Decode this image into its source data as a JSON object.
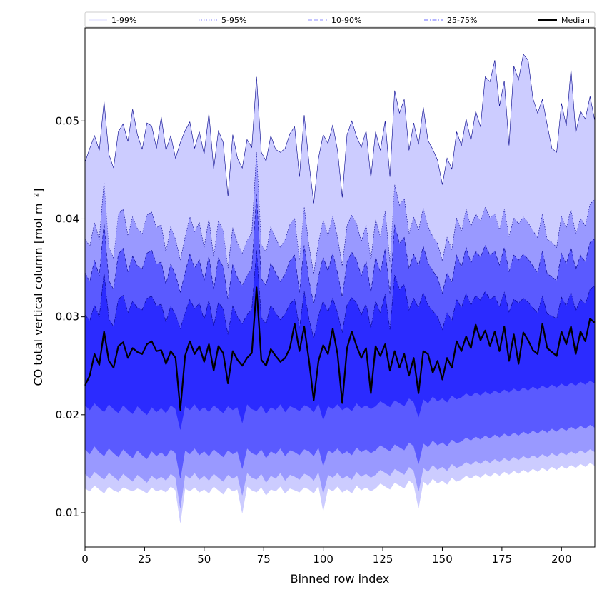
{
  "chart_data": {
    "type": "area",
    "xlabel": "Binned row index",
    "ylabel": "CO total vertical column [mol m⁻²]",
    "xlim": [
      0,
      214
    ],
    "ylim": [
      0.0065,
      0.0595
    ],
    "x_ticks": [
      0,
      25,
      50,
      75,
      100,
      125,
      150,
      175,
      200
    ],
    "y_ticks": [
      0.01,
      0.02,
      0.03,
      0.04,
      0.05
    ],
    "x_tick_labels": [
      "0",
      "25",
      "50",
      "75",
      "100",
      "125",
      "150",
      "175",
      "200"
    ],
    "y_tick_labels": [
      "0.01",
      "0.02",
      "0.03",
      "0.04",
      "0.05"
    ],
    "grid": false,
    "legend_position": "top",
    "x_step": 2,
    "series": [
      {
        "name": "1-99%",
        "color": "#ccccff",
        "line_style": "solid",
        "lower": [
          0.0125,
          0.0122,
          0.0128,
          0.0124,
          0.012,
          0.0127,
          0.0123,
          0.0121,
          0.0126,
          0.0124,
          0.0122,
          0.0125,
          0.0123,
          0.012,
          0.0126,
          0.0122,
          0.0124,
          0.0121,
          0.0127,
          0.0123,
          0.009,
          0.0125,
          0.0122,
          0.0126,
          0.0121,
          0.0124,
          0.012,
          0.0127,
          0.0123,
          0.0119,
          0.0126,
          0.0122,
          0.0124,
          0.01,
          0.0127,
          0.0123,
          0.0121,
          0.0126,
          0.0118,
          0.0124,
          0.0122,
          0.0127,
          0.012,
          0.0125,
          0.0123,
          0.0121,
          0.0126,
          0.0124,
          0.012,
          0.0128,
          0.0102,
          0.0125,
          0.0122,
          0.0127,
          0.0121,
          0.0124,
          0.012,
          0.0128,
          0.0123,
          0.0126,
          0.0122,
          0.0125,
          0.013,
          0.0127,
          0.0124,
          0.0131,
          0.0128,
          0.0125,
          0.0133,
          0.0129,
          0.0105,
          0.0132,
          0.0128,
          0.0135,
          0.013,
          0.0133,
          0.0129,
          0.0136,
          0.0132,
          0.0134,
          0.0138,
          0.0135,
          0.0139,
          0.0136,
          0.014,
          0.0137,
          0.0141,
          0.0138,
          0.0142,
          0.0139,
          0.0143,
          0.014,
          0.0144,
          0.0141,
          0.0145,
          0.0142,
          0.0146,
          0.0143,
          0.0147,
          0.0144,
          0.0148,
          0.0145,
          0.0149,
          0.0146,
          0.015,
          0.0147,
          0.0151,
          0.0148
        ],
        "upper": [
          0.0458,
          0.0472,
          0.0485,
          0.047,
          0.052,
          0.0466,
          0.0452,
          0.0489,
          0.0497,
          0.0479,
          0.0512,
          0.0486,
          0.0471,
          0.0498,
          0.0495,
          0.0472,
          0.0504,
          0.047,
          0.0485,
          0.0462,
          0.0478,
          0.049,
          0.0499,
          0.0472,
          0.0489,
          0.0466,
          0.0508,
          0.0451,
          0.049,
          0.0478,
          0.0423,
          0.0486,
          0.0462,
          0.0452,
          0.0481,
          0.0473,
          0.0545,
          0.0468,
          0.0459,
          0.0485,
          0.0471,
          0.0468,
          0.0472,
          0.0487,
          0.0494,
          0.0443,
          0.0506,
          0.0458,
          0.0416,
          0.0462,
          0.0486,
          0.0477,
          0.0496,
          0.047,
          0.0422,
          0.0486,
          0.05,
          0.0484,
          0.0473,
          0.049,
          0.0442,
          0.0489,
          0.047,
          0.05,
          0.0443,
          0.0531,
          0.0508,
          0.0522,
          0.047,
          0.0498,
          0.0476,
          0.0514,
          0.048,
          0.0471,
          0.046,
          0.0435,
          0.0462,
          0.0451,
          0.0489,
          0.0475,
          0.0502,
          0.048,
          0.051,
          0.0494,
          0.0545,
          0.054,
          0.0562,
          0.0515,
          0.0541,
          0.0475,
          0.0556,
          0.0542,
          0.0568,
          0.0562,
          0.0523,
          0.0508,
          0.0522,
          0.0496,
          0.0472,
          0.0468,
          0.0518,
          0.0495,
          0.0553,
          0.0488,
          0.051,
          0.0502,
          0.0525,
          0.05
        ]
      },
      {
        "name": "5-95%",
        "color": "#9999ff",
        "line_style": "dotted",
        "lower": [
          0.014,
          0.0135,
          0.0142,
          0.0138,
          0.0134,
          0.0141,
          0.0137,
          0.0133,
          0.014,
          0.0136,
          0.0132,
          0.0139,
          0.0135,
          0.0131,
          0.0138,
          0.0134,
          0.0137,
          0.0133,
          0.014,
          0.0136,
          0.0105,
          0.0139,
          0.0135,
          0.0141,
          0.0134,
          0.0138,
          0.0133,
          0.014,
          0.0136,
          0.0132,
          0.0139,
          0.0135,
          0.0138,
          0.0118,
          0.0141,
          0.0136,
          0.0134,
          0.014,
          0.0131,
          0.0138,
          0.0135,
          0.0141,
          0.0133,
          0.0139,
          0.0137,
          0.0134,
          0.014,
          0.0138,
          0.0133,
          0.0142,
          0.012,
          0.0139,
          0.0136,
          0.0141,
          0.0135,
          0.0138,
          0.0134,
          0.0142,
          0.0137,
          0.014,
          0.0136,
          0.0139,
          0.0144,
          0.0141,
          0.0138,
          0.0145,
          0.0142,
          0.0139,
          0.0147,
          0.0143,
          0.0122,
          0.0146,
          0.0142,
          0.0149,
          0.0144,
          0.0147,
          0.0143,
          0.015,
          0.0146,
          0.0148,
          0.0152,
          0.0149,
          0.0153,
          0.015,
          0.0154,
          0.0151,
          0.0155,
          0.0152,
          0.0156,
          0.0153,
          0.0157,
          0.0154,
          0.0158,
          0.0155,
          0.0159,
          0.0156,
          0.016,
          0.0157,
          0.0161,
          0.0158,
          0.0162,
          0.0159,
          0.0163,
          0.016,
          0.0164,
          0.0161,
          0.0165,
          0.0162
        ],
        "upper": [
          0.038,
          0.0372,
          0.0396,
          0.0379,
          0.0438,
          0.0371,
          0.036,
          0.0405,
          0.041,
          0.0383,
          0.0402,
          0.039,
          0.0385,
          0.0404,
          0.0407,
          0.0391,
          0.0394,
          0.0366,
          0.0392,
          0.0379,
          0.0358,
          0.0381,
          0.0402,
          0.0387,
          0.0396,
          0.0371,
          0.04,
          0.0361,
          0.0398,
          0.0388,
          0.035,
          0.0391,
          0.0375,
          0.0365,
          0.0378,
          0.0386,
          0.0468,
          0.0374,
          0.0366,
          0.0392,
          0.038,
          0.0371,
          0.0379,
          0.0394,
          0.0401,
          0.0358,
          0.0412,
          0.0373,
          0.0344,
          0.0376,
          0.0399,
          0.0383,
          0.0403,
          0.0381,
          0.0352,
          0.0393,
          0.0404,
          0.0395,
          0.0377,
          0.0394,
          0.0358,
          0.0399,
          0.0382,
          0.0408,
          0.0356,
          0.0435,
          0.0414,
          0.0421,
          0.0385,
          0.0402,
          0.0388,
          0.0411,
          0.0392,
          0.0382,
          0.0375,
          0.0357,
          0.0381,
          0.0369,
          0.0401,
          0.0387,
          0.041,
          0.0392,
          0.0405,
          0.0398,
          0.0412,
          0.0401,
          0.0405,
          0.0389,
          0.041,
          0.0382,
          0.0401,
          0.0395,
          0.0402,
          0.0396,
          0.0388,
          0.0381,
          0.0405,
          0.0379,
          0.0376,
          0.0371,
          0.0403,
          0.039,
          0.041,
          0.0384,
          0.0401,
          0.0393,
          0.0415,
          0.042
        ]
      },
      {
        "name": "10-90%",
        "color": "#5a5aff",
        "line_style": "dashed",
        "lower": [
          0.0165,
          0.016,
          0.0168,
          0.0162,
          0.0158,
          0.0166,
          0.0161,
          0.0157,
          0.0165,
          0.016,
          0.0156,
          0.0164,
          0.0159,
          0.0155,
          0.0163,
          0.0158,
          0.0162,
          0.0157,
          0.0165,
          0.0161,
          0.0135,
          0.0164,
          0.016,
          0.0166,
          0.0159,
          0.0163,
          0.0158,
          0.0165,
          0.0161,
          0.0157,
          0.0164,
          0.016,
          0.0163,
          0.0145,
          0.0166,
          0.0161,
          0.0159,
          0.0165,
          0.0156,
          0.0163,
          0.016,
          0.0166,
          0.0158,
          0.0164,
          0.0162,
          0.0159,
          0.0165,
          0.0163,
          0.0158,
          0.0167,
          0.0148,
          0.0164,
          0.0161,
          0.0166,
          0.016,
          0.0163,
          0.0159,
          0.0167,
          0.0162,
          0.0165,
          0.0161,
          0.0164,
          0.0169,
          0.0166,
          0.0163,
          0.017,
          0.0167,
          0.0164,
          0.0172,
          0.0168,
          0.015,
          0.0171,
          0.0167,
          0.0174,
          0.0169,
          0.0172,
          0.0168,
          0.0175,
          0.0171,
          0.0173,
          0.0177,
          0.0174,
          0.0178,
          0.0175,
          0.0179,
          0.0176,
          0.018,
          0.0177,
          0.0181,
          0.0178,
          0.0182,
          0.0179,
          0.0183,
          0.018,
          0.0184,
          0.0181,
          0.0185,
          0.0182,
          0.0186,
          0.0183,
          0.0187,
          0.0184,
          0.0188,
          0.0185,
          0.0189,
          0.0186,
          0.019,
          0.0187
        ],
        "upper": [
          0.0345,
          0.0336,
          0.0358,
          0.0342,
          0.0396,
          0.0337,
          0.0328,
          0.0364,
          0.037,
          0.0346,
          0.0362,
          0.0352,
          0.0349,
          0.0365,
          0.0368,
          0.0354,
          0.0356,
          0.0333,
          0.0354,
          0.0343,
          0.0325,
          0.0345,
          0.0364,
          0.035,
          0.0358,
          0.0337,
          0.0362,
          0.0328,
          0.036,
          0.0351,
          0.0318,
          0.0354,
          0.034,
          0.0332,
          0.0342,
          0.035,
          0.0425,
          0.0339,
          0.0332,
          0.0355,
          0.0345,
          0.0336,
          0.0344,
          0.0357,
          0.0363,
          0.0325,
          0.0373,
          0.0338,
          0.0313,
          0.0341,
          0.0361,
          0.0347,
          0.0365,
          0.0345,
          0.032,
          0.0356,
          0.0366,
          0.0358,
          0.0342,
          0.0357,
          0.0325,
          0.0361,
          0.0346,
          0.0369,
          0.0324,
          0.0394,
          0.0375,
          0.0381,
          0.0349,
          0.0364,
          0.0352,
          0.0372,
          0.0355,
          0.0347,
          0.034,
          0.0324,
          0.0345,
          0.0335,
          0.0363,
          0.0351,
          0.0371,
          0.0355,
          0.0367,
          0.0361,
          0.0373,
          0.0363,
          0.0367,
          0.0353,
          0.0371,
          0.0346,
          0.0363,
          0.0358,
          0.0364,
          0.0359,
          0.0352,
          0.0345,
          0.0367,
          0.0344,
          0.0341,
          0.0337,
          0.0365,
          0.0354,
          0.0371,
          0.0348,
          0.0363,
          0.0356,
          0.0376,
          0.038
        ]
      },
      {
        "name": "25-75%",
        "color": "#2b2bff",
        "line_style": "dashdot",
        "lower": [
          0.021,
          0.0205,
          0.0212,
          0.0207,
          0.0203,
          0.0211,
          0.0206,
          0.0202,
          0.021,
          0.0205,
          0.0201,
          0.0209,
          0.0204,
          0.02,
          0.0208,
          0.0203,
          0.0207,
          0.0202,
          0.021,
          0.0206,
          0.0185,
          0.0209,
          0.0205,
          0.0211,
          0.0204,
          0.0208,
          0.0203,
          0.021,
          0.0206,
          0.0202,
          0.0209,
          0.0205,
          0.0208,
          0.0192,
          0.0211,
          0.0206,
          0.0204,
          0.021,
          0.0201,
          0.0208,
          0.0205,
          0.0211,
          0.0203,
          0.0209,
          0.0207,
          0.0204,
          0.021,
          0.0208,
          0.0203,
          0.0212,
          0.0195,
          0.0209,
          0.0206,
          0.0211,
          0.0205,
          0.0208,
          0.0204,
          0.0212,
          0.0207,
          0.021,
          0.0206,
          0.0209,
          0.0214,
          0.0211,
          0.0208,
          0.0215,
          0.0212,
          0.0209,
          0.0217,
          0.0213,
          0.0198,
          0.0216,
          0.0212,
          0.0219,
          0.0214,
          0.0217,
          0.0213,
          0.022,
          0.0216,
          0.0218,
          0.0222,
          0.0219,
          0.0223,
          0.022,
          0.0224,
          0.0221,
          0.0225,
          0.0222,
          0.0226,
          0.0223,
          0.0227,
          0.0224,
          0.0228,
          0.0225,
          0.0229,
          0.0226,
          0.023,
          0.0227,
          0.0231,
          0.0228,
          0.0232,
          0.0229,
          0.0233,
          0.023,
          0.0234,
          0.0231,
          0.0235,
          0.0232
        ],
        "upper": [
          0.0302,
          0.0296,
          0.0312,
          0.03,
          0.0345,
          0.0298,
          0.029,
          0.0318,
          0.0322,
          0.0304,
          0.0316,
          0.0309,
          0.0307,
          0.0319,
          0.0321,
          0.0311,
          0.0313,
          0.0294,
          0.0311,
          0.0302,
          0.0288,
          0.0304,
          0.0318,
          0.0308,
          0.0314,
          0.0297,
          0.0317,
          0.029,
          0.0315,
          0.0308,
          0.0282,
          0.0311,
          0.03,
          0.0293,
          0.0302,
          0.0308,
          0.0368,
          0.0299,
          0.0293,
          0.0312,
          0.0304,
          0.0297,
          0.0303,
          0.0313,
          0.0318,
          0.0288,
          0.0326,
          0.0298,
          0.0278,
          0.0301,
          0.0316,
          0.0305,
          0.0319,
          0.0304,
          0.0284,
          0.0312,
          0.032,
          0.0314,
          0.0302,
          0.0313,
          0.0288,
          0.0316,
          0.0304,
          0.0323,
          0.0287,
          0.0343,
          0.0328,
          0.0333,
          0.0307,
          0.0319,
          0.0309,
          0.0325,
          0.0312,
          0.0306,
          0.03,
          0.0287,
          0.0304,
          0.0296,
          0.0318,
          0.0309,
          0.0324,
          0.0312,
          0.0322,
          0.0317,
          0.0326,
          0.0318,
          0.0321,
          0.031,
          0.0325,
          0.0305,
          0.0318,
          0.0314,
          0.0319,
          0.0315,
          0.0309,
          0.0304,
          0.0321,
          0.0303,
          0.0301,
          0.0298,
          0.032,
          0.0311,
          0.0325,
          0.0306,
          0.0318,
          0.0313,
          0.0328,
          0.0332
        ]
      }
    ],
    "median": {
      "name": "Median",
      "color": "#000000",
      "values": [
        0.023,
        0.024,
        0.0262,
        0.0251,
        0.0285,
        0.0255,
        0.0248,
        0.027,
        0.0274,
        0.0258,
        0.0268,
        0.0264,
        0.0262,
        0.0272,
        0.0275,
        0.0265,
        0.0266,
        0.0252,
        0.0265,
        0.0258,
        0.0205,
        0.026,
        0.0275,
        0.0262,
        0.027,
        0.0254,
        0.0272,
        0.0245,
        0.027,
        0.0263,
        0.0232,
        0.0265,
        0.0256,
        0.025,
        0.0258,
        0.0263,
        0.033,
        0.0256,
        0.025,
        0.0267,
        0.026,
        0.0254,
        0.0258,
        0.0268,
        0.0293,
        0.0265,
        0.029,
        0.0256,
        0.0215,
        0.0255,
        0.0271,
        0.0262,
        0.0288,
        0.0262,
        0.0212,
        0.0268,
        0.0285,
        0.027,
        0.0258,
        0.0268,
        0.0222,
        0.027,
        0.026,
        0.0272,
        0.0245,
        0.0265,
        0.0248,
        0.0262,
        0.024,
        0.0258,
        0.0222,
        0.0265,
        0.0262,
        0.0243,
        0.0255,
        0.0236,
        0.0258,
        0.0248,
        0.0275,
        0.0265,
        0.028,
        0.0268,
        0.0292,
        0.0276,
        0.0286,
        0.027,
        0.0285,
        0.0265,
        0.029,
        0.0255,
        0.0282,
        0.0252,
        0.0284,
        0.0276,
        0.0266,
        0.0262,
        0.0293,
        0.0268,
        0.0264,
        0.026,
        0.0285,
        0.0272,
        0.029,
        0.0262,
        0.0285,
        0.0275,
        0.0298,
        0.0294
      ]
    },
    "legend_labels": [
      "1-99%",
      "5-95%",
      "10-90%",
      "25-75%",
      "Median"
    ]
  }
}
